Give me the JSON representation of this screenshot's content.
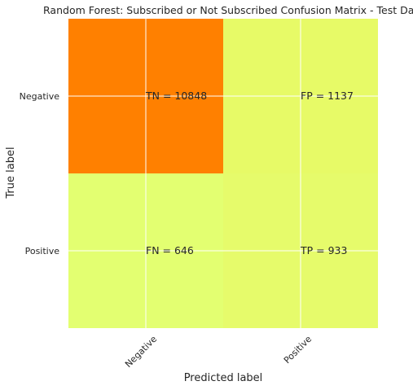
{
  "chart_data": {
    "type": "heatmap",
    "title": "Random Forest: Subscribed or Not Subscribed Confusion Matrix - Test Data",
    "xlabel": "Predicted label",
    "ylabel": "True label",
    "x_categories": [
      "Negative",
      "Positive"
    ],
    "y_categories": [
      "Negative",
      "Positive"
    ],
    "cells": [
      {
        "row": 0,
        "col": 0,
        "label": "TN = 10848",
        "value": 10848,
        "color": "#ff8000"
      },
      {
        "row": 0,
        "col": 1,
        "label": "FP = 1137",
        "value": 1137,
        "color": "#e7fa67"
      },
      {
        "row": 1,
        "col": 0,
        "label": "FN = 646",
        "value": 646,
        "color": "#e3ff71"
      },
      {
        "row": 1,
        "col": 1,
        "label": "TP = 933",
        "value": 933,
        "color": "#e6fb6b"
      }
    ],
    "colormap": "Wistia",
    "grid": true,
    "grid_color": "#ffffff"
  }
}
